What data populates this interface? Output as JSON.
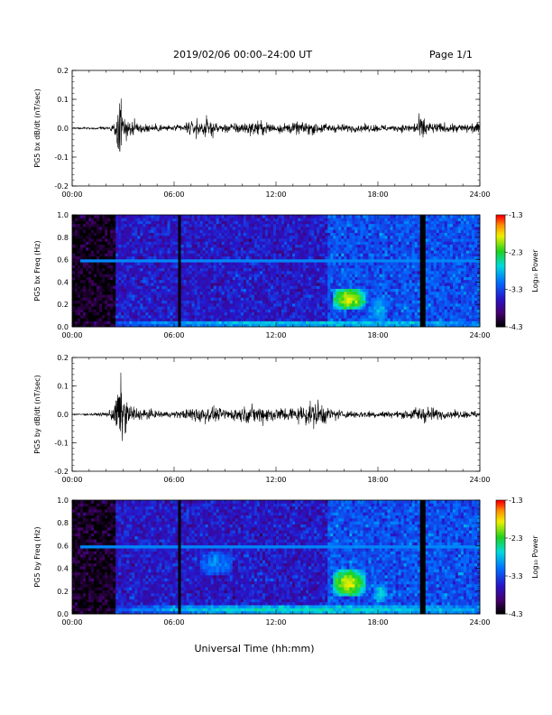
{
  "header": {
    "title": "2019/02/06  00:00–24:00 UT",
    "page": "Page 1/1"
  },
  "colors": {
    "background": "#ffffff",
    "axis": "#000000",
    "waveform": "#000000",
    "spectrogram_low": "#000000",
    "spectrogram_high": "#ff0000"
  },
  "chart_data": [
    {
      "type": "line",
      "name": "waveform-bx",
      "ylabel": "PG5 bx dB/dt (nT/sec)",
      "xlim": [
        "00:00",
        "24:00"
      ],
      "xticks": [
        "00:00",
        "06:00",
        "12:00",
        "18:00",
        "24:00"
      ],
      "ylim": [
        -0.2,
        0.2
      ],
      "yticks": [
        "-0.2",
        "-0.1",
        "0.0",
        "0.1",
        "0.2"
      ],
      "envelope": {
        "x_hours": [
          0,
          1,
          2,
          2.5,
          2.7,
          2.8,
          3.0,
          3.2,
          3.5,
          4,
          5,
          6,
          6.5,
          7,
          8,
          8.5,
          9,
          10,
          11,
          11.5,
          12,
          13,
          14,
          15,
          16,
          17,
          18,
          19,
          20,
          20.5,
          20.7,
          21,
          22,
          23,
          24
        ],
        "amplitude": [
          0.004,
          0.005,
          0.01,
          0.03,
          0.1,
          0.2,
          0.12,
          0.08,
          0.05,
          0.03,
          0.02,
          0.015,
          0.02,
          0.04,
          0.05,
          0.03,
          0.025,
          0.03,
          0.04,
          0.035,
          0.025,
          0.03,
          0.035,
          0.025,
          0.02,
          0.02,
          0.02,
          0.015,
          0.025,
          0.06,
          0.07,
          0.03,
          0.025,
          0.025,
          0.03
        ]
      }
    },
    {
      "type": "heatmap",
      "name": "spectrogram-bx",
      "ylabel": "PG5 bx Freq (Hz)",
      "xlim": [
        "00:00",
        "24:00"
      ],
      "xticks": [
        "00:00",
        "06:00",
        "12:00",
        "18:00",
        "24:00"
      ],
      "ylim": [
        0.0,
        1.0
      ],
      "yticks": [
        "0.0",
        "0.2",
        "0.4",
        "0.6",
        "0.8",
        "1.0"
      ],
      "colorbar": {
        "label": "Log₁₀ Power",
        "range": [
          -4.3,
          -1.3
        ],
        "ticks": [
          "-1.3",
          "-2.3",
          "-3.3",
          "-4.3"
        ]
      },
      "dark_gaps_hours": [
        6.3,
        20.6
      ],
      "high_noise_start_hours": 15.0,
      "features": [
        {
          "t_start": 15.3,
          "t_end": 17.3,
          "f_low": 0.15,
          "f_high": 0.35,
          "level": -1.9
        },
        {
          "t_start": 17.6,
          "t_end": 18.6,
          "f_low": 0.05,
          "f_high": 0.25,
          "level": -2.8
        },
        {
          "t_start": 2.5,
          "t_end": 24.0,
          "f_low": 0.0,
          "f_high": 0.06,
          "level": -2.7
        }
      ]
    },
    {
      "type": "line",
      "name": "waveform-by",
      "ylabel": "PG5 by dB/dt (nT/sec)",
      "xlim": [
        "00:00",
        "24:00"
      ],
      "xticks": [
        "00:00",
        "06:00",
        "12:00",
        "18:00",
        "24:00"
      ],
      "ylim": [
        -0.2,
        0.2
      ],
      "yticks": [
        "-0.2",
        "-0.1",
        "0.0",
        "0.1",
        "0.2"
      ],
      "envelope": {
        "x_hours": [
          0,
          1,
          2,
          2.5,
          2.7,
          2.8,
          3.0,
          3.2,
          3.5,
          4,
          5,
          6,
          6.5,
          7,
          7.5,
          8,
          9,
          10,
          11,
          12,
          13,
          14,
          14.5,
          15,
          16,
          17,
          18,
          19,
          20,
          20.5,
          21,
          22,
          23,
          24
        ],
        "amplitude": [
          0.004,
          0.005,
          0.01,
          0.05,
          0.15,
          0.2,
          0.13,
          0.08,
          0.05,
          0.03,
          0.02,
          0.015,
          0.025,
          0.03,
          0.07,
          0.04,
          0.03,
          0.04,
          0.05,
          0.04,
          0.04,
          0.06,
          0.08,
          0.04,
          0.02,
          0.02,
          0.02,
          0.015,
          0.03,
          0.05,
          0.04,
          0.02,
          0.02,
          0.02
        ]
      }
    },
    {
      "type": "heatmap",
      "name": "spectrogram-by",
      "ylabel": "PG5 by Freq (Hz)",
      "xlim": [
        "00:00",
        "24:00"
      ],
      "xticks": [
        "00:00",
        "06:00",
        "12:00",
        "18:00",
        "24:00"
      ],
      "ylim": [
        0.0,
        1.0
      ],
      "yticks": [
        "0.0",
        "0.2",
        "0.4",
        "0.6",
        "0.8",
        "1.0"
      ],
      "colorbar": {
        "label": "Log₁₀ Power",
        "range": [
          -4.3,
          -1.3
        ],
        "ticks": [
          "-1.3",
          "-2.3",
          "-3.3",
          "-4.3"
        ]
      },
      "dark_gaps_hours": [
        6.3,
        20.6
      ],
      "high_noise_start_hours": 15.0,
      "features": [
        {
          "t_start": 15.3,
          "t_end": 17.3,
          "f_low": 0.15,
          "f_high": 0.4,
          "level": -1.9
        },
        {
          "t_start": 17.8,
          "t_end": 18.5,
          "f_low": 0.1,
          "f_high": 0.25,
          "level": -2.6
        },
        {
          "t_start": 7.5,
          "t_end": 9.5,
          "f_low": 0.35,
          "f_high": 0.55,
          "level": -3.0
        },
        {
          "t_start": 2.5,
          "t_end": 24.0,
          "f_low": 0.0,
          "f_high": 0.08,
          "level": -2.6
        }
      ]
    }
  ],
  "footer": {
    "xlabel": "Universal Time (hh:mm)"
  }
}
